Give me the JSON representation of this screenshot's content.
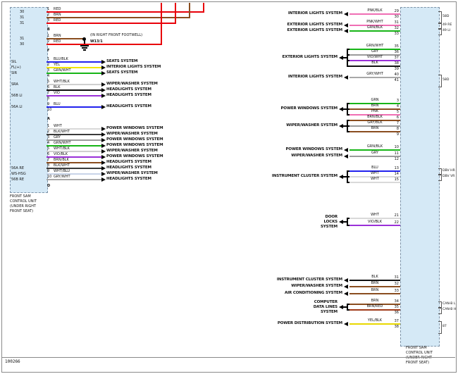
{
  "footer": {
    "drawing_number": "100266"
  },
  "ground": {
    "note": "(IN RIGHT FRONT FOOTWELL)",
    "id": "W13/1"
  },
  "left_unit": {
    "caption_lines": [
      "FRONT SAM",
      "CONTROL UNIT",
      "(UNDER RIGHT",
      "FRONT SEAT)"
    ],
    "groups": [
      {
        "connector": "B",
        "rows": [
          {
            "pin": "1",
            "circuit": "30",
            "color": "RED",
            "dest": "top"
          },
          {
            "pin": "2",
            "circuit": "31",
            "color": "BRN",
            "dest": "top"
          },
          {
            "pin": "3",
            "circuit": "31",
            "color": "RED",
            "dest": "top"
          }
        ]
      },
      {
        "connector": "F",
        "rows": [
          {
            "pin": "1",
            "circuit": "31",
            "color": "BRN",
            "dest": "ground"
          },
          {
            "pin": "2",
            "circuit": "30",
            "color": "RED",
            "dest": "top"
          }
        ]
      },
      {
        "connector": "A",
        "rows": [
          {
            "pin": "1",
            "label": "SIL",
            "color": "BLU/BLK",
            "system": "SEATS SYSTEM"
          },
          {
            "pin": "2",
            "label": "FL(+)",
            "color": "YEL",
            "system": "INTERIOR LIGHTS SYSTEM"
          },
          {
            "pin": "3",
            "label": "SIR",
            "color": "GRN/WHT",
            "system": "SEATS SYSTEM"
          },
          {
            "pin": "4"
          },
          {
            "pin": "5",
            "label": "SRA",
            "color": "WHT/BLK",
            "system": "WIPER/WASHER SYSTEM"
          },
          {
            "pin": "6",
            "color": "BLK",
            "system": "HEADLIGHTS SYSTEM"
          },
          {
            "pin": "7",
            "label": "56B LI",
            "color": "VIO",
            "system": "HEADLIGHTS SYSTEM"
          },
          {
            "pin": "8"
          },
          {
            "pin": "9",
            "label": "56A LI",
            "color": "BLU",
            "system": "HEADLIGHTS SYSTEM"
          },
          {
            "pin": "10"
          }
        ]
      },
      {
        "connector": "D",
        "rows": [
          {
            "pin": "1",
            "color": "WHT",
            "system": "POWER WINDOWS SYSTEM"
          },
          {
            "pin": "2",
            "color": "BLK/WHT",
            "system": "WIPER/WASHER SYSTEM"
          },
          {
            "pin": "3",
            "color": "GRY",
            "system": "POWER WINDOWS SYSTEM"
          },
          {
            "pin": "4",
            "color": "GRN/WHT",
            "system": "POWER WINDOWS SYSTEM"
          },
          {
            "pin": "5",
            "color": "WHT/BLK",
            "system": "WIPER/WASHER SYSTEM"
          },
          {
            "pin": "6",
            "color": "VIO/BLK",
            "system": "POWER WINDOWS SYSTEM"
          },
          {
            "pin": "7",
            "color": "BRN/BLK",
            "system": "HEADLIGHTS SYSTEM"
          },
          {
            "pin": "8",
            "label": "56A RE",
            "color": "BLK/WHT",
            "system": "HEADLIGHTS SYSTEM"
          },
          {
            "pin": "9",
            "label": "WS-HSG",
            "color": "WHT/BLU",
            "system": "WIPER/WASHER SYSTEM"
          },
          {
            "pin": "10",
            "label": "56B RE",
            "color": "GRY/WHT",
            "system": "HEADLIGHTS SYSTEM"
          }
        ]
      }
    ]
  },
  "right_unit": {
    "caption_lines": [
      "FRONT SAM",
      "CONTROL UNIT",
      "(UNDER RIGHT",
      "FRONT SEAT)"
    ],
    "sections": [
      {
        "system": "INTERIOR LIGHTS SYSTEM",
        "rows": [
          {
            "pin": "29",
            "color": "PNK/BLK"
          }
        ]
      },
      {
        "rows": [
          {
            "pin": "30"
          }
        ]
      },
      {
        "system": "EXTERIOR LIGHTS SYSTEM",
        "rows": [
          {
            "pin": "31",
            "color": "PNK/WHT"
          }
        ]
      },
      {
        "system": "EXTERIOR LIGHTS SYSTEM",
        "rows": [
          {
            "pin": "32",
            "color": "GRN/BLK"
          }
        ]
      },
      {
        "rows": [
          {
            "pin": "33"
          }
        ]
      },
      {
        "system": "EXTERIOR LIGHTS SYSTEM",
        "rows": [
          {
            "pin": "35",
            "color": "GRN/WHT"
          },
          {
            "pin": "36",
            "color": "GRY"
          },
          {
            "pin": "37",
            "color": "VIO/WHT"
          },
          {
            "pin": "38",
            "color": "BLK"
          }
        ]
      },
      {
        "rows": [
          {
            "pin": "39"
          }
        ]
      },
      {
        "system": "INTERIOR LIGHTS SYSTEM",
        "rows": [
          {
            "pin": "40",
            "color": "GRY/WHT"
          }
        ]
      },
      {
        "rows": [
          {
            "pin": "41"
          }
        ]
      },
      {
        "system": "POWER WINDOWS SYSTEM",
        "rows": [
          {
            "pin": "3",
            "color": "GRN"
          },
          {
            "pin": "4",
            "color": "BRN"
          },
          {
            "pin": "5",
            "color": "PNK"
          }
        ]
      },
      {
        "system": "WIPER/WASHER SYSTEM",
        "rows": [
          {
            "pin": "6",
            "color": "BRN/BLK"
          },
          {
            "pin": "7",
            "color": "GRY/BLK"
          },
          {
            "pin": "8",
            "color": "BRN"
          }
        ]
      },
      {
        "rows": [
          {
            "pin": "9"
          }
        ]
      },
      {
        "system": "POWER WINDOWS SYSTEM",
        "rows": [
          {
            "pin": "10",
            "color": "GRN/BLK"
          }
        ]
      },
      {
        "system": "WIPER/WASHER SYSTEM",
        "rows": [
          {
            "pin": "11",
            "color": "GRY"
          }
        ]
      },
      {
        "rows": [
          {
            "pin": "12"
          }
        ]
      },
      {
        "system": "INSTRUMENT CLUSTER SYSTEM",
        "rows": [
          {
            "pin": "13",
            "color": "BLU"
          },
          {
            "pin": "14",
            "color": "WHT"
          },
          {
            "pin": "15",
            "color": "WHT"
          }
        ]
      },
      {
        "system_lines": [
          "DOOR",
          "LOCKS",
          "SYSTEM"
        ],
        "rows": [
          {
            "pin": "21",
            "color": "WHT"
          },
          {
            "pin": "22",
            "color": "VIO/BLK"
          }
        ]
      },
      {
        "system": "INSTRUMENT CLUSTER SYSTEM",
        "rows": [
          {
            "pin": "31",
            "color": "BLK"
          }
        ]
      },
      {
        "system": "WIPER/WASHER SYSTEM",
        "rows": [
          {
            "pin": "32",
            "color": "BRN"
          }
        ]
      },
      {
        "system": "AIR CONDITIONING SYSTEM",
        "rows": [
          {
            "pin": "33",
            "color": "BRN"
          }
        ]
      },
      {
        "system_lines": [
          "COMPUTER",
          "DATA LINES",
          "SYSTEM"
        ],
        "rows": [
          {
            "pin": "34",
            "color": "BRN"
          },
          {
            "pin": "35",
            "color": "BRN/RED"
          }
        ]
      },
      {
        "rows": [
          {
            "pin": "36"
          }
        ]
      },
      {
        "system": "POWER DISTRIBUTION SYSTEM",
        "rows": [
          {
            "pin": "37",
            "color": "YEL/BLK"
          }
        ]
      },
      {
        "rows": [
          {
            "pin": "38"
          }
        ]
      }
    ],
    "annotations": [
      "58D",
      "49 RE",
      "49 LI",
      "58D",
      "DBV HR",
      "DBV VR",
      "CAN-B L",
      "CAN-B H",
      "87"
    ]
  },
  "wire_colors": {
    "RED": "#e8000a",
    "BRN": "#8a4d1f",
    "BLU/BLK": "#2222ee",
    "YEL": "#f2e500",
    "GRN/WHT": "#17b517",
    "WHT/BLK": "#cfcfcf",
    "BLK": "#111111",
    "VIO": "#9a30d8",
    "BLU": "#2222ee",
    "WHT": "#d9d9d9",
    "BLK/WHT": "#3a3a3a",
    "GRY": "#9a9a9a",
    "VIO/BLK": "#9a30d8",
    "BRN/BLK": "#8a4d1f",
    "WHT/BLU": "#c8d4e8",
    "GRY/WHT": "#a8a8a8",
    "PNK/BLK": "#f06eb4",
    "PNK/WHT": "#f06eb4",
    "GRN/BLK": "#17b517",
    "VIO/WHT": "#9a30d8",
    "GRN": "#17b517",
    "PNK": "#f06eb4",
    "GRY/BLK": "#9a9a9a",
    "BRN/RED": "#a03a1a",
    "YEL/BLK": "#e8d800"
  }
}
